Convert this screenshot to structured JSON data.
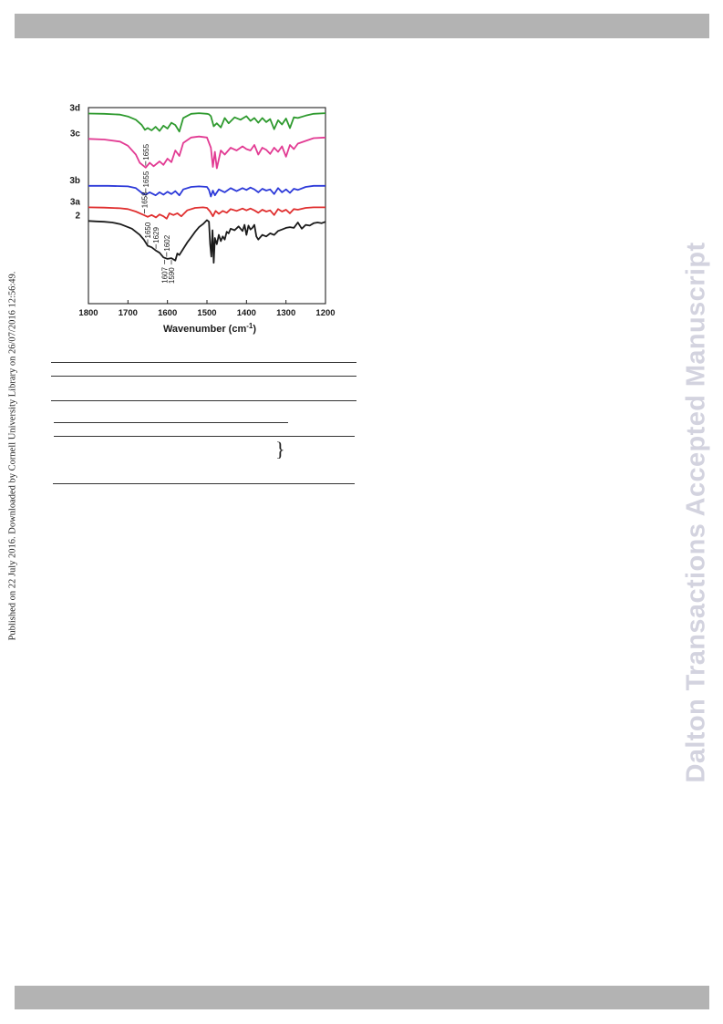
{
  "header": {
    "bar_color": "#b3b3b3"
  },
  "footer": {
    "bar_color": "#b3b3b3"
  },
  "side_stamp": "Published on 22 July 2016. Downloaded by Cornell University Library on 26/07/2016 12:56:49.",
  "watermark": "Dalton Transactions Accepted Manuscript",
  "table_sketch": {
    "brace_glyph": "}"
  },
  "chart_data": {
    "type": "line",
    "title": "",
    "xlabel": "Wavenumber (cm",
    "xlabel_superscript": "-1",
    "xlabel_close": ")",
    "ylabel": "",
    "xlim": [
      1800,
      1200
    ],
    "x_ticks": [
      "1800",
      "1700",
      "1600",
      "1500",
      "1400",
      "1300",
      "1200"
    ],
    "grid": false,
    "series": [
      {
        "name": "3d",
        "color": "#2e9a2e",
        "x": [
          1800,
          1760,
          1720,
          1700,
          1680,
          1665,
          1657,
          1650,
          1640,
          1630,
          1620,
          1610,
          1600,
          1590,
          1580,
          1570,
          1560,
          1540,
          1520,
          1500,
          1495,
          1490,
          1483,
          1475,
          1465,
          1455,
          1445,
          1430,
          1415,
          1400,
          1390,
          1380,
          1370,
          1360,
          1350,
          1340,
          1330,
          1320,
          1310,
          1300,
          1290,
          1280,
          1270,
          1250,
          1230,
          1200
        ],
        "y": [
          0.42,
          0.4,
          0.33,
          0.18,
          -0.1,
          -0.55,
          -0.95,
          -0.8,
          -1.0,
          -0.7,
          -1.05,
          -0.6,
          -0.85,
          -0.35,
          -0.55,
          -1.1,
          0.05,
          0.4,
          0.45,
          0.4,
          0.35,
          0.2,
          -0.65,
          -0.4,
          -0.75,
          0.05,
          -0.4,
          0.1,
          -0.1,
          0.2,
          -0.2,
          0.05,
          -0.35,
          0.05,
          -0.3,
          -0.05,
          -0.9,
          -0.15,
          -0.5,
          0.0,
          -0.8,
          0.1,
          0.05,
          0.25,
          0.4,
          0.45
        ]
      },
      {
        "name": "3c",
        "color": "#e23b93",
        "x": [
          1800,
          1760,
          1720,
          1700,
          1680,
          1670,
          1655,
          1645,
          1635,
          1620,
          1610,
          1600,
          1590,
          1580,
          1570,
          1560,
          1540,
          1520,
          1500,
          1490,
          1485,
          1480,
          1475,
          1465,
          1455,
          1440,
          1425,
          1410,
          1400,
          1390,
          1380,
          1370,
          1360,
          1350,
          1340,
          1330,
          1320,
          1310,
          1300,
          1290,
          1280,
          1270,
          1250,
          1230,
          1200
        ],
        "y": [
          0.25,
          0.2,
          0.05,
          -0.25,
          -0.9,
          -1.5,
          -1.85,
          -1.5,
          -1.75,
          -1.4,
          -1.65,
          -1.2,
          -1.45,
          -0.6,
          -1.0,
          -0.05,
          0.35,
          0.42,
          0.35,
          -0.4,
          -1.8,
          -0.7,
          -1.9,
          -0.6,
          -0.9,
          -0.4,
          -0.6,
          -0.3,
          -0.5,
          -0.6,
          -0.2,
          -0.9,
          -0.4,
          -0.55,
          -0.85,
          -0.4,
          -0.7,
          -0.3,
          -1.05,
          -0.2,
          -0.5,
          -0.1,
          0.1,
          0.3,
          0.35
        ]
      },
      {
        "name": "3b",
        "color": "#2d3ad9",
        "x": [
          1800,
          1750,
          1700,
          1680,
          1665,
          1655,
          1645,
          1630,
          1620,
          1610,
          1600,
          1590,
          1580,
          1570,
          1560,
          1540,
          1520,
          1500,
          1495,
          1490,
          1485,
          1480,
          1470,
          1455,
          1440,
          1425,
          1410,
          1400,
          1390,
          1380,
          1370,
          1360,
          1350,
          1340,
          1330,
          1320,
          1310,
          1300,
          1290,
          1280,
          1270,
          1250,
          1230,
          1200
        ],
        "y": [
          0.25,
          0.25,
          0.2,
          0.05,
          -0.35,
          -0.5,
          -0.3,
          -0.55,
          -0.3,
          -0.5,
          -0.25,
          -0.45,
          -0.2,
          -0.55,
          -0.05,
          0.15,
          0.2,
          0.15,
          -0.1,
          -0.65,
          -0.15,
          -0.55,
          -0.05,
          -0.3,
          0.05,
          -0.2,
          0.05,
          -0.1,
          0.1,
          -0.05,
          -0.3,
          0.0,
          -0.15,
          -0.05,
          -0.45,
          0.05,
          -0.3,
          -0.05,
          -0.35,
          0.0,
          -0.1,
          0.15,
          0.25,
          0.25
        ]
      },
      {
        "name": "3a",
        "color": "#e03030",
        "x": [
          1800,
          1760,
          1720,
          1700,
          1680,
          1660,
          1650,
          1640,
          1629,
          1620,
          1610,
          1602,
          1595,
          1585,
          1575,
          1565,
          1550,
          1530,
          1510,
          1500,
          1492,
          1485,
          1478,
          1470,
          1460,
          1450,
          1440,
          1425,
          1410,
          1400,
          1390,
          1380,
          1370,
          1360,
          1350,
          1340,
          1330,
          1320,
          1310,
          1300,
          1290,
          1280,
          1270,
          1250,
          1230,
          1200
        ],
        "y": [
          0.2,
          0.18,
          0.12,
          0.05,
          -0.15,
          -0.45,
          -0.6,
          -0.45,
          -0.65,
          -0.4,
          -0.55,
          -0.75,
          -0.3,
          -0.45,
          -0.3,
          -0.55,
          -0.05,
          0.15,
          0.2,
          0.15,
          -0.15,
          -0.55,
          -0.1,
          -0.35,
          -0.1,
          -0.25,
          0.05,
          -0.1,
          0.1,
          -0.05,
          0.1,
          -0.05,
          -0.25,
          0.0,
          -0.15,
          -0.05,
          -0.45,
          0.05,
          -0.15,
          0.0,
          -0.3,
          0.05,
          0.0,
          0.15,
          0.2,
          0.2
        ]
      },
      {
        "name": "2",
        "color": "#1c1c1c",
        "x": [
          1800,
          1780,
          1760,
          1740,
          1720,
          1700,
          1690,
          1680,
          1670,
          1660,
          1650,
          1640,
          1630,
          1620,
          1610,
          1600,
          1590,
          1580,
          1575,
          1570,
          1560,
          1550,
          1540,
          1530,
          1520,
          1510,
          1500,
          1495,
          1492,
          1489,
          1486,
          1483,
          1480,
          1475,
          1470,
          1465,
          1460,
          1455,
          1450,
          1445,
          1440,
          1430,
          1420,
          1410,
          1405,
          1400,
          1395,
          1390,
          1385,
          1380,
          1375,
          1370,
          1360,
          1350,
          1340,
          1330,
          1320,
          1310,
          1300,
          1290,
          1280,
          1270,
          1260,
          1250,
          1240,
          1230,
          1220,
          1210,
          1200
        ],
        "y": [
          0.1,
          0.07,
          0.05,
          0.0,
          -0.1,
          -0.3,
          -0.4,
          -0.6,
          -0.8,
          -1.1,
          -1.5,
          -1.6,
          -1.8,
          -1.95,
          -2.25,
          -2.35,
          -2.3,
          -2.45,
          -2.0,
          -2.1,
          -1.7,
          -1.3,
          -0.95,
          -0.6,
          -0.3,
          -0.1,
          0.15,
          0.05,
          -1.4,
          -2.2,
          -0.5,
          -2.6,
          -1.0,
          -1.4,
          -0.8,
          -1.2,
          -0.9,
          -1.1,
          -0.6,
          -0.7,
          -0.4,
          -0.5,
          -0.25,
          -0.55,
          -0.15,
          -0.8,
          -0.2,
          -0.45,
          -0.35,
          -0.15,
          -0.9,
          -1.1,
          -0.8,
          -0.9,
          -0.7,
          -0.8,
          -0.55,
          -0.45,
          -0.35,
          -0.3,
          -0.35,
          0.0,
          -0.4,
          -0.15,
          -0.2,
          -0.05,
          0.0,
          -0.05,
          0.05
        ]
      }
    ],
    "annotations": [
      {
        "text": "1655",
        "series": "3c",
        "x": 1655
      },
      {
        "text": "1655",
        "series": "3b",
        "x": 1655
      },
      {
        "text": "1658",
        "series": "3a",
        "x": 1658
      },
      {
        "text": "1650",
        "series": "2",
        "x": 1650
      },
      {
        "text": "1629",
        "series": "2",
        "x": 1629
      },
      {
        "text": "1602",
        "series": "2",
        "x": 1602
      },
      {
        "text": "1607",
        "series": "2",
        "x": 1607,
        "below": true
      },
      {
        "text": "1590",
        "series": "2",
        "x": 1590,
        "below": true
      }
    ]
  }
}
